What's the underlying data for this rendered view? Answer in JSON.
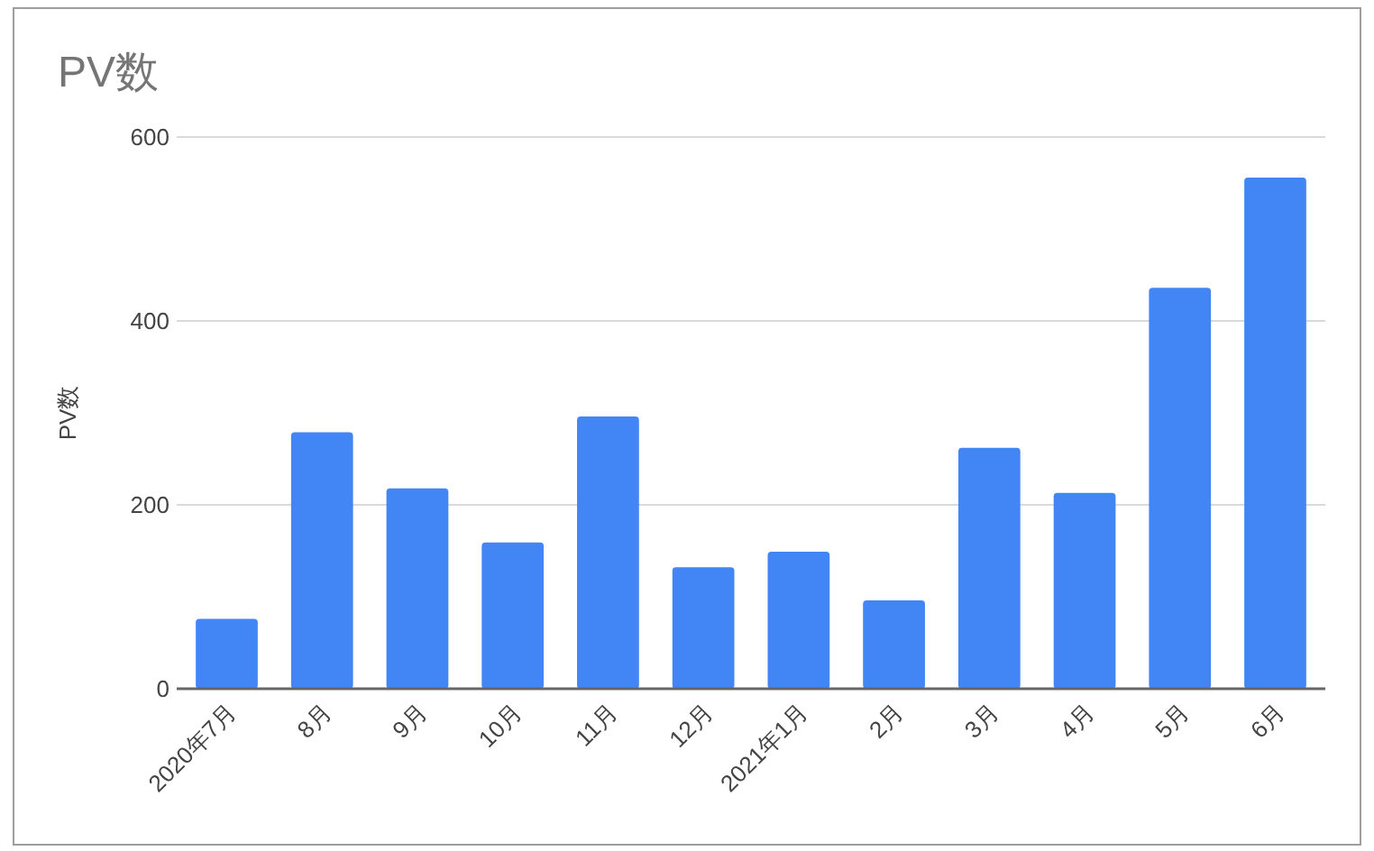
{
  "chart_data": {
    "type": "bar",
    "title": "PV数",
    "ylabel": "PV数",
    "categories": [
      "2020年7月",
      "8月",
      "9月",
      "10月",
      "11月",
      "12月",
      "2021年1月",
      "2月",
      "3月",
      "4月",
      "5月",
      "6月"
    ],
    "values": [
      76,
      279,
      218,
      159,
      296,
      132,
      149,
      96,
      262,
      213,
      436,
      556
    ],
    "color": "#4285f4",
    "ylim": [
      0,
      600
    ],
    "yticks": [
      0,
      200,
      400,
      600
    ],
    "grid": "y"
  }
}
